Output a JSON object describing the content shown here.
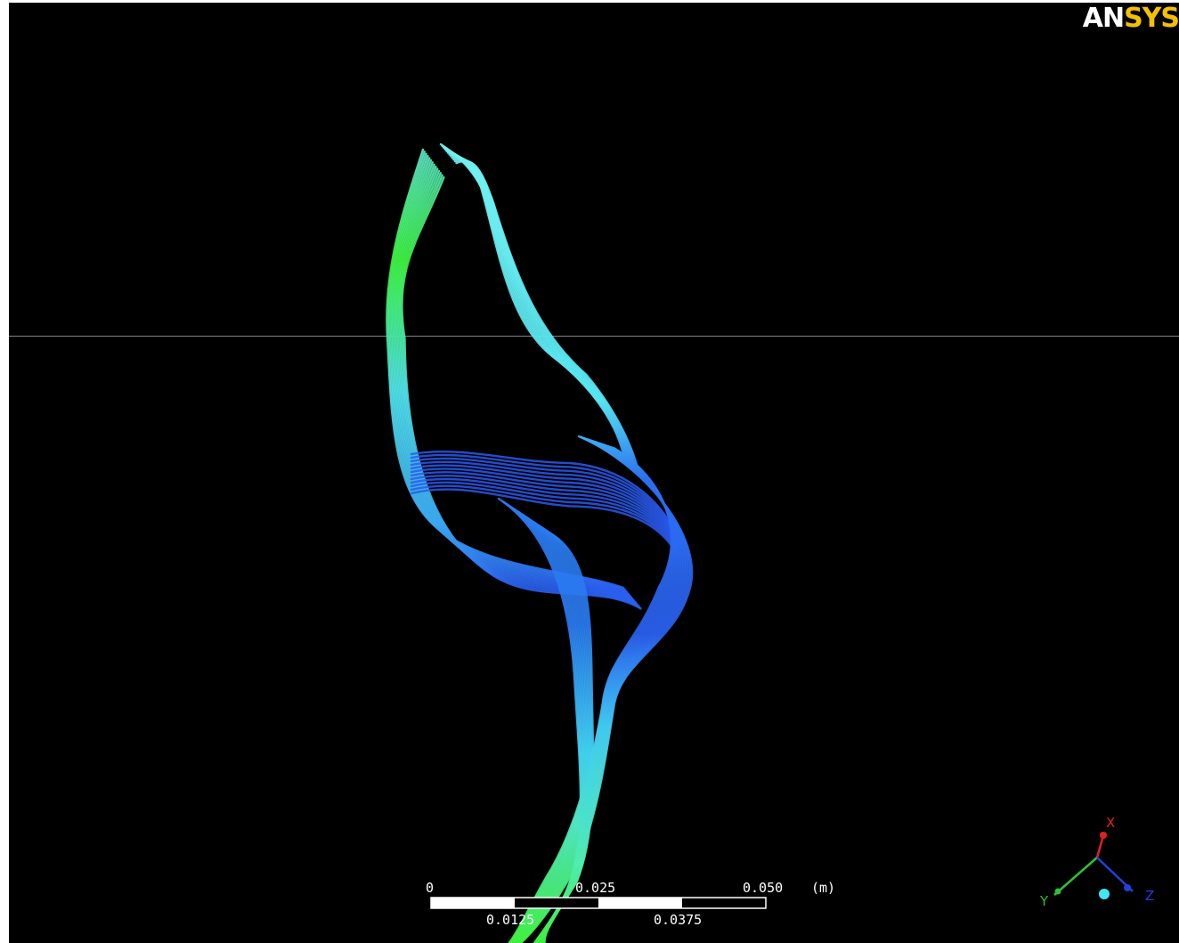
{
  "logo": {
    "part1": "AN",
    "part2": "SYS"
  },
  "scale_bar": {
    "unit": "(m)",
    "top_labels": [
      "0",
      "0.025",
      "0.050"
    ],
    "bottom_labels": [
      "0.0125",
      "0.0375"
    ]
  },
  "axes": {
    "x": "X",
    "y": "Y",
    "z": "Z"
  },
  "colors": {
    "background": "#000000",
    "streamline_green": "#3cf040",
    "streamline_cyan": "#60ecf0",
    "streamline_blue": "#1e4af0",
    "logo_yellow": "#f2c200",
    "axis_x": "#e02020",
    "axis_y": "#30c030",
    "axis_z": "#2040e0"
  }
}
